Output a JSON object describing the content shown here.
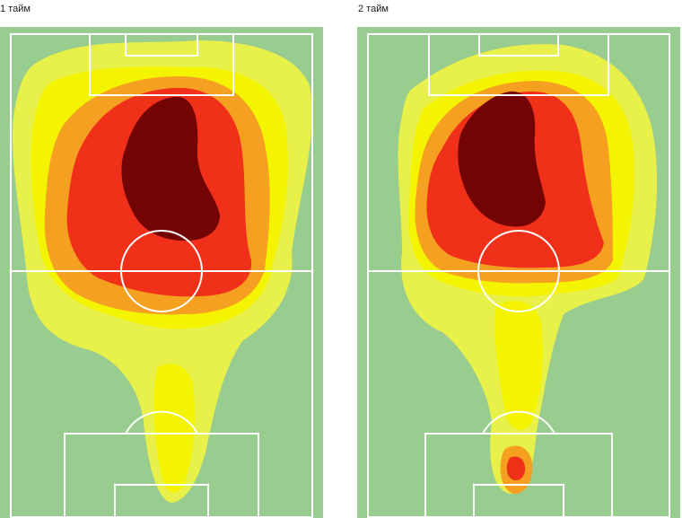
{
  "halves": [
    {
      "label": "1 тайм"
    },
    {
      "label": "2 тайм"
    }
  ],
  "colors": {
    "pitch": "#99cc8f",
    "line": "#ffffff",
    "level_1": "#e8f04a",
    "level_2": "#f4f400",
    "level_3": "#f5a020",
    "level_4": "#f03018",
    "level_5": "#740404"
  }
}
